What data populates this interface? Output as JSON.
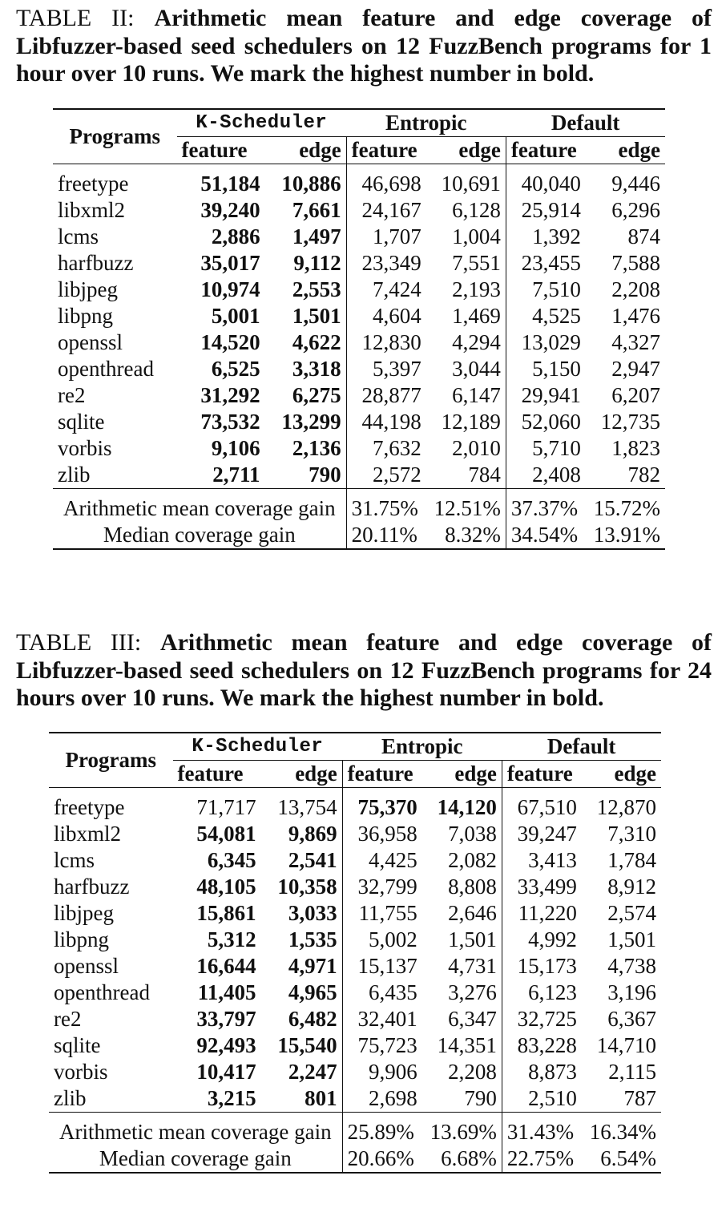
{
  "tables": [
    {
      "caption_label": "TABLE II:",
      "caption_text": "Arithmetic mean feature and edge coverage of Libfuzzer-based seed schedulers on 12 FuzzBench programs for 1 hour over 10 runs. We mark the highest number in bold.",
      "header": {
        "programs": "Programs",
        "groups": [
          "K-Scheduler",
          "Entropic",
          "Default"
        ],
        "sub": [
          "feature",
          "edge",
          "feature",
          "edge",
          "feature",
          "edge"
        ]
      },
      "rows": [
        {
          "program": "freetype",
          "values": [
            "51,184",
            "10,886",
            "46,698",
            "10,691",
            "40,040",
            "9,446"
          ],
          "bold": [
            0,
            1
          ]
        },
        {
          "program": "libxml2",
          "values": [
            "39,240",
            "7,661",
            "24,167",
            "6,128",
            "25,914",
            "6,296"
          ],
          "bold": [
            0,
            1
          ]
        },
        {
          "program": "lcms",
          "values": [
            "2,886",
            "1,497",
            "1,707",
            "1,004",
            "1,392",
            "874"
          ],
          "bold": [
            0,
            1
          ]
        },
        {
          "program": "harfbuzz",
          "values": [
            "35,017",
            "9,112",
            "23,349",
            "7,551",
            "23,455",
            "7,588"
          ],
          "bold": [
            0,
            1
          ]
        },
        {
          "program": "libjpeg",
          "values": [
            "10,974",
            "2,553",
            "7,424",
            "2,193",
            "7,510",
            "2,208"
          ],
          "bold": [
            0,
            1
          ]
        },
        {
          "program": "libpng",
          "values": [
            "5,001",
            "1,501",
            "4,604",
            "1,469",
            "4,525",
            "1,476"
          ],
          "bold": [
            0,
            1
          ]
        },
        {
          "program": "openssl",
          "values": [
            "14,520",
            "4,622",
            "12,830",
            "4,294",
            "13,029",
            "4,327"
          ],
          "bold": [
            0,
            1
          ]
        },
        {
          "program": "openthread",
          "values": [
            "6,525",
            "3,318",
            "5,397",
            "3,044",
            "5,150",
            "2,947"
          ],
          "bold": [
            0,
            1
          ]
        },
        {
          "program": "re2",
          "values": [
            "31,292",
            "6,275",
            "28,877",
            "6,147",
            "29,941",
            "6,207"
          ],
          "bold": [
            0,
            1
          ]
        },
        {
          "program": "sqlite",
          "values": [
            "73,532",
            "13,299",
            "44,198",
            "12,189",
            "52,060",
            "12,735"
          ],
          "bold": [
            0,
            1
          ]
        },
        {
          "program": "vorbis",
          "values": [
            "9,106",
            "2,136",
            "7,632",
            "2,010",
            "5,710",
            "1,823"
          ],
          "bold": [
            0,
            1
          ]
        },
        {
          "program": "zlib",
          "values": [
            "2,711",
            "790",
            "2,572",
            "784",
            "2,408",
            "782"
          ],
          "bold": [
            0,
            1
          ]
        }
      ],
      "summary": [
        {
          "label": "Arithmetic mean coverage gain",
          "values": [
            "31.75%",
            "12.51%",
            "37.37%",
            "15.72%"
          ]
        },
        {
          "label": "Median coverage gain",
          "values": [
            "20.11%",
            "8.32%",
            "34.54%",
            "13.91%"
          ]
        }
      ]
    },
    {
      "caption_label": "TABLE III:",
      "caption_text": "Arithmetic mean feature and edge coverage of Libfuzzer-based seed schedulers on 12 FuzzBench programs for 24 hours over 10 runs. We mark the highest number in bold.",
      "header": {
        "programs": "Programs",
        "groups": [
          "K-Scheduler",
          "Entropic",
          "Default"
        ],
        "sub": [
          "feature",
          "edge",
          "feature",
          "edge",
          "feature",
          "edge"
        ]
      },
      "rows": [
        {
          "program": "freetype",
          "values": [
            "71,717",
            "13,754",
            "75,370",
            "14,120",
            "67,510",
            "12,870"
          ],
          "bold": [
            2,
            3
          ]
        },
        {
          "program": "libxml2",
          "values": [
            "54,081",
            "9,869",
            "36,958",
            "7,038",
            "39,247",
            "7,310"
          ],
          "bold": [
            0,
            1
          ]
        },
        {
          "program": "lcms",
          "values": [
            "6,345",
            "2,541",
            "4,425",
            "2,082",
            "3,413",
            "1,784"
          ],
          "bold": [
            0,
            1
          ]
        },
        {
          "program": "harfbuzz",
          "values": [
            "48,105",
            "10,358",
            "32,799",
            "8,808",
            "33,499",
            "8,912"
          ],
          "bold": [
            0,
            1
          ]
        },
        {
          "program": "libjpeg",
          "values": [
            "15,861",
            "3,033",
            "11,755",
            "2,646",
            "11,220",
            "2,574"
          ],
          "bold": [
            0,
            1
          ]
        },
        {
          "program": "libpng",
          "values": [
            "5,312",
            "1,535",
            "5,002",
            "1,501",
            "4,992",
            "1,501"
          ],
          "bold": [
            0,
            1
          ]
        },
        {
          "program": "openssl",
          "values": [
            "16,644",
            "4,971",
            "15,137",
            "4,731",
            "15,173",
            "4,738"
          ],
          "bold": [
            0,
            1
          ]
        },
        {
          "program": "openthread",
          "values": [
            "11,405",
            "4,965",
            "6,435",
            "3,276",
            "6,123",
            "3,196"
          ],
          "bold": [
            0,
            1
          ]
        },
        {
          "program": "re2",
          "values": [
            "33,797",
            "6,482",
            "32,401",
            "6,347",
            "32,725",
            "6,367"
          ],
          "bold": [
            0,
            1
          ]
        },
        {
          "program": "sqlite",
          "values": [
            "92,493",
            "15,540",
            "75,723",
            "14,351",
            "83,228",
            "14,710"
          ],
          "bold": [
            0,
            1
          ]
        },
        {
          "program": "vorbis",
          "values": [
            "10,417",
            "2,247",
            "9,906",
            "2,208",
            "8,873",
            "2,115"
          ],
          "bold": [
            0,
            1
          ]
        },
        {
          "program": "zlib",
          "values": [
            "3,215",
            "801",
            "2,698",
            "790",
            "2,510",
            "787"
          ],
          "bold": [
            0,
            1
          ]
        }
      ],
      "summary": [
        {
          "label": "Arithmetic mean coverage gain",
          "values": [
            "25.89%",
            "13.69%",
            "31.43%",
            "16.34%"
          ]
        },
        {
          "label": "Median coverage gain",
          "values": [
            "20.66%",
            "6.68%",
            "22.75%",
            "6.54%"
          ]
        }
      ]
    }
  ]
}
